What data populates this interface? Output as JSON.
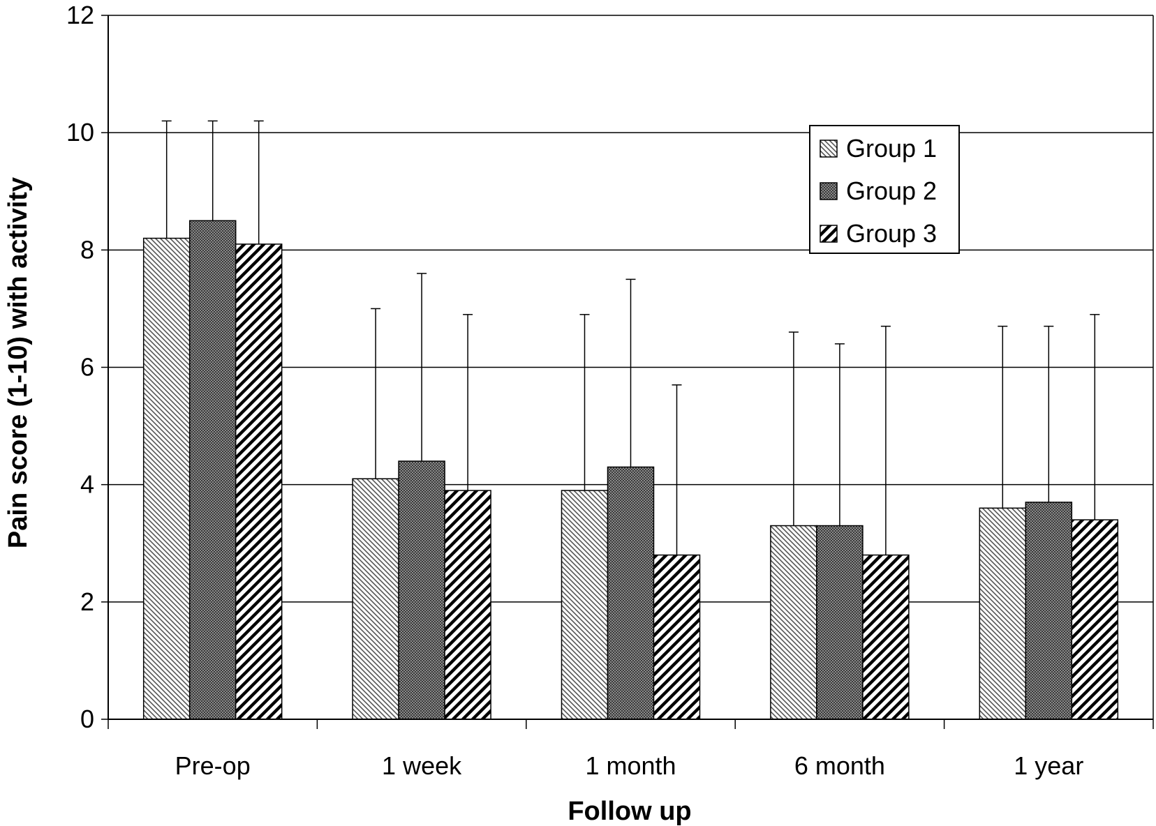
{
  "chart_data": {
    "type": "bar",
    "title": "",
    "xlabel": "Follow up",
    "ylabel": "Pain score (1-10) with activity",
    "ylim": [
      0,
      12
    ],
    "yticks": [
      "0",
      "2",
      "4",
      "6",
      "8",
      "10",
      "12"
    ],
    "grid": true,
    "legend_position": "top-right",
    "categories": [
      "Pre-op",
      "1 week",
      "1 month",
      "6 month",
      "1 year"
    ],
    "series": [
      {
        "name": "Group 1",
        "pattern": "fine-diagonal-hatch",
        "color": "#ffffff",
        "values": [
          8.2,
          4.1,
          3.9,
          3.3,
          3.6
        ],
        "error_upper": [
          10.2,
          7.0,
          6.9,
          6.6,
          6.7
        ]
      },
      {
        "name": "Group 2",
        "pattern": "dark-dotted",
        "color": "#6e6e6e",
        "values": [
          8.5,
          4.4,
          4.3,
          3.3,
          3.7
        ],
        "error_upper": [
          10.2,
          7.6,
          7.5,
          6.4,
          6.7
        ]
      },
      {
        "name": "Group 3",
        "pattern": "bold-diagonal-stripes",
        "color": "#000000",
        "values": [
          8.1,
          3.9,
          2.8,
          2.8,
          3.4
        ],
        "error_upper": [
          10.2,
          6.9,
          5.7,
          6.7,
          6.9
        ]
      }
    ]
  }
}
